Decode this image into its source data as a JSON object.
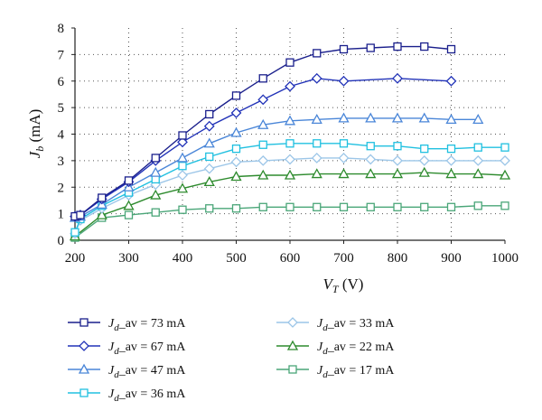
{
  "chart_data": {
    "type": "line",
    "xlabel": {
      "main": "V",
      "sub": "T",
      "unit": " (V)"
    },
    "ylabel": {
      "main": "J",
      "sub": "b",
      "unit": " (mA)"
    },
    "xlim": [
      200,
      1000
    ],
    "ylim": [
      0,
      8
    ],
    "x_ticks": [
      "200",
      "300",
      "400",
      "500",
      "600",
      "700",
      "800",
      "900",
      "1000"
    ],
    "y_ticks": [
      "0",
      "1",
      "2",
      "3",
      "4",
      "5",
      "6",
      "7",
      "8"
    ],
    "grid": "dotted",
    "legend_position": "bottom",
    "series": [
      {
        "name": "J_d_av = 73 mA",
        "legend": {
          "main": "J",
          "sub": "d",
          "rest": "_av = 73 mA"
        },
        "color": "#1a1f8c",
        "marker": "square",
        "x": [
          200,
          210,
          250,
          300,
          350,
          400,
          450,
          500,
          550,
          600,
          650,
          700,
          750,
          800,
          850,
          900
        ],
        "y": [
          0.9,
          0.95,
          1.6,
          2.25,
          3.1,
          3.95,
          4.75,
          5.45,
          6.1,
          6.7,
          7.05,
          7.2,
          7.25,
          7.3,
          7.3,
          7.2
        ]
      },
      {
        "name": "J_d_av = 67 mA",
        "legend": {
          "main": "J",
          "sub": "d",
          "rest": "_av = 67 mA"
        },
        "color": "#2233b8",
        "marker": "diamond",
        "x": [
          200,
          210,
          250,
          300,
          350,
          400,
          450,
          500,
          550,
          600,
          650,
          700,
          800,
          900
        ],
        "y": [
          0.9,
          0.95,
          1.55,
          2.2,
          3.0,
          3.7,
          4.3,
          4.8,
          5.3,
          5.8,
          6.1,
          6.0,
          6.1,
          6.0
        ]
      },
      {
        "name": "J_d_av = 47 mA",
        "legend": {
          "main": "J",
          "sub": "d",
          "rest": "_av = 47 mA"
        },
        "color": "#4a86d8",
        "marker": "triangle",
        "x": [
          200,
          210,
          250,
          300,
          350,
          400,
          450,
          500,
          550,
          600,
          650,
          700,
          750,
          800,
          850,
          900,
          950
        ],
        "y": [
          0.85,
          0.9,
          1.35,
          2.0,
          2.55,
          3.1,
          3.65,
          4.05,
          4.35,
          4.5,
          4.55,
          4.6,
          4.6,
          4.6,
          4.6,
          4.55,
          4.55
        ]
      },
      {
        "name": "J_d_av = 36 mA",
        "legend": {
          "main": "J",
          "sub": "d",
          "rest": "_av = 36 mA"
        },
        "color": "#20c0e0",
        "marker": "square",
        "x": [
          200,
          210,
          250,
          300,
          350,
          400,
          450,
          500,
          550,
          600,
          650,
          700,
          750,
          800,
          850,
          900,
          950,
          1000
        ],
        "y": [
          0.3,
          0.8,
          1.3,
          1.8,
          2.3,
          2.8,
          3.15,
          3.45,
          3.6,
          3.65,
          3.65,
          3.65,
          3.55,
          3.55,
          3.45,
          3.45,
          3.5,
          3.5
        ]
      },
      {
        "name": "J_d_av = 33 mA",
        "legend": {
          "main": "J",
          "sub": "d",
          "rest": "_av = 33 mA"
        },
        "color": "#9cc6e8",
        "marker": "diamond",
        "x": [
          200,
          210,
          250,
          300,
          350,
          400,
          450,
          500,
          550,
          600,
          650,
          700,
          750,
          800,
          850,
          900,
          950,
          1000
        ],
        "y": [
          0.25,
          0.75,
          1.2,
          1.7,
          2.1,
          2.45,
          2.7,
          2.95,
          3.0,
          3.05,
          3.1,
          3.1,
          3.05,
          3.0,
          3.0,
          3.0,
          3.0,
          3.0
        ]
      },
      {
        "name": "J_d_av = 22 mA",
        "legend": {
          "main": "J",
          "sub": "d",
          "rest": "_av = 22 mA"
        },
        "color": "#2e8b2e",
        "marker": "triangle",
        "x": [
          200,
          250,
          300,
          350,
          400,
          450,
          500,
          550,
          600,
          650,
          700,
          750,
          800,
          850,
          900,
          950,
          1000
        ],
        "y": [
          0.15,
          0.95,
          1.3,
          1.7,
          1.95,
          2.2,
          2.4,
          2.45,
          2.45,
          2.5,
          2.5,
          2.5,
          2.5,
          2.55,
          2.5,
          2.5,
          2.45
        ]
      },
      {
        "name": "J_d_av = 17 mA",
        "legend": {
          "main": "J",
          "sub": "d",
          "rest": "_av = 17 mA"
        },
        "color": "#4aa678",
        "marker": "square",
        "x": [
          200,
          250,
          300,
          350,
          400,
          450,
          500,
          550,
          600,
          650,
          700,
          750,
          800,
          850,
          900,
          950,
          1000
        ],
        "y": [
          0.1,
          0.85,
          0.95,
          1.05,
          1.15,
          1.2,
          1.2,
          1.25,
          1.25,
          1.25,
          1.25,
          1.25,
          1.25,
          1.25,
          1.25,
          1.3,
          1.3
        ]
      }
    ]
  }
}
